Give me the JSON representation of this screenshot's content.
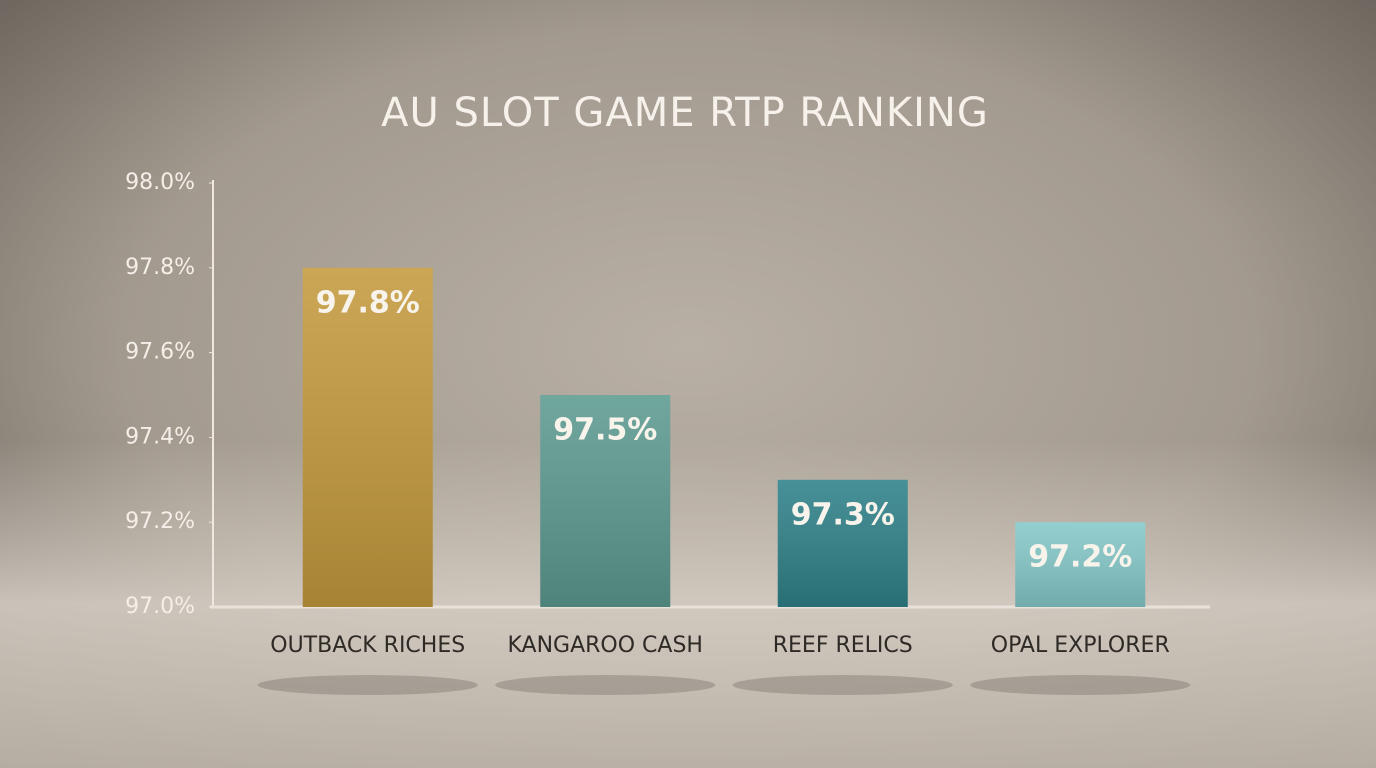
{
  "chart_data": {
    "type": "bar",
    "title": "AU SLOT GAME RTP RANKING",
    "categories": [
      "OUTBACK RICHES",
      "KANGAROO CASH",
      "REEF RELICS",
      "OPAL EXPLORER"
    ],
    "values": [
      97.8,
      97.5,
      97.3,
      97.2
    ],
    "value_labels": [
      "97.8%",
      "97.5%",
      "97.3%",
      "97.2%"
    ],
    "colors": [
      "#c49a3e",
      "#5c9a90",
      "#2f8189",
      "#86c9ca"
    ],
    "ylim": [
      97.0,
      98.0
    ],
    "yticks": [
      {
        "value": 97.0,
        "label": "97.0%"
      },
      {
        "value": 97.2,
        "label": "97.2%"
      },
      {
        "value": 97.4,
        "label": "97.4%"
      },
      {
        "value": 97.6,
        "label": "97.6%"
      },
      {
        "value": 97.8,
        "label": "97.8%"
      },
      {
        "value": 98.0,
        "label": "98.0%"
      }
    ]
  }
}
